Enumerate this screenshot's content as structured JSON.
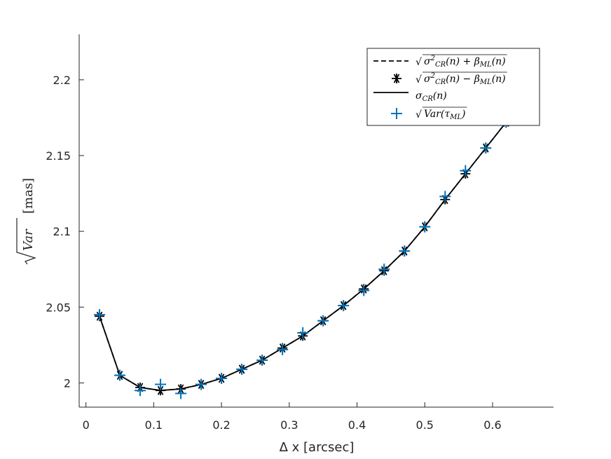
{
  "chart_data": {
    "type": "line",
    "xlabel": "Δ x [arcsec]",
    "ylabel": {
      "main": "Var",
      "unit": "[mas]"
    },
    "xlim": [
      -0.01,
      0.69
    ],
    "ylim": [
      1.984,
      2.23
    ],
    "xticks": [
      0,
      0.1,
      0.2,
      0.3,
      0.4,
      0.5,
      0.6
    ],
    "xtick_labels": [
      "0",
      "0.1",
      "0.2",
      "0.3",
      "0.4",
      "0.5",
      "0.6"
    ],
    "yticks": [
      2.0,
      2.05,
      2.1,
      2.15,
      2.2
    ],
    "ytick_labels": [
      "2",
      "2.05",
      "2.1",
      "2.15",
      "2.2"
    ],
    "grid": false,
    "legend_position": "top-right",
    "x": [
      0.02,
      0.05,
      0.08,
      0.11,
      0.14,
      0.17,
      0.2,
      0.23,
      0.26,
      0.29,
      0.32,
      0.35,
      0.38,
      0.41,
      0.44,
      0.47,
      0.5,
      0.53,
      0.56,
      0.59,
      0.62
    ],
    "series": [
      {
        "name": "√(σ²CR(n) + βML(n))",
        "style": "dashed",
        "color": "#000000",
        "values": [
          2.044,
          2.005,
          1.997,
          1.995,
          1.996,
          1.999,
          2.003,
          2.009,
          2.015,
          2.023,
          2.031,
          2.041,
          2.051,
          2.062,
          2.074,
          2.087,
          2.103,
          2.121,
          2.138,
          2.155,
          2.172
        ]
      },
      {
        "name": "√(σ²CR(n) − βML(n))",
        "style": "asterisk",
        "color": "#000000",
        "values": [
          2.044,
          2.005,
          1.997,
          1.995,
          1.996,
          1.999,
          2.003,
          2.009,
          2.015,
          2.023,
          2.031,
          2.041,
          2.051,
          2.062,
          2.074,
          2.087,
          2.103,
          2.121,
          2.138,
          2.155,
          2.172
        ]
      },
      {
        "name": "σCR(n)",
        "style": "solid",
        "color": "#000000",
        "values": [
          2.044,
          2.005,
          1.997,
          1.995,
          1.996,
          1.999,
          2.003,
          2.009,
          2.015,
          2.023,
          2.031,
          2.041,
          2.051,
          2.062,
          2.074,
          2.087,
          2.103,
          2.121,
          2.138,
          2.155,
          2.172
        ]
      },
      {
        "name": "√Var(τML)",
        "style": "plus",
        "color": "#0072bd",
        "values": [
          2.045,
          2.005,
          1.995,
          1.999,
          1.993,
          1.999,
          2.003,
          2.009,
          2.015,
          2.022,
          2.033,
          2.041,
          2.051,
          2.061,
          2.075,
          2.087,
          2.103,
          2.123,
          2.14,
          2.155,
          2.172
        ]
      }
    ],
    "legend_entries": [
      {
        "sym": "√",
        "main": "σ",
        "sup": "2",
        "sub": "CR",
        "rest": "(n) + β",
        "sub2": "ML",
        "tail": "(n)"
      },
      {
        "sym": "√",
        "main": "σ",
        "sup": "2",
        "sub": "CR",
        "rest": "(n) − β",
        "sub2": "ML",
        "tail": "(n)"
      },
      {
        "sym": "",
        "main": "σ",
        "sup": "",
        "sub": "CR",
        "rest": "(n)",
        "sub2": "",
        "tail": ""
      },
      {
        "sym": "√",
        "main": "Var(τ",
        "sup": "",
        "sub": "ML",
        "rest": ")",
        "sub2": "",
        "tail": ""
      }
    ],
    "colors": {
      "axis": "#262626",
      "black": "#000000",
      "blue": "#0072bd"
    }
  }
}
